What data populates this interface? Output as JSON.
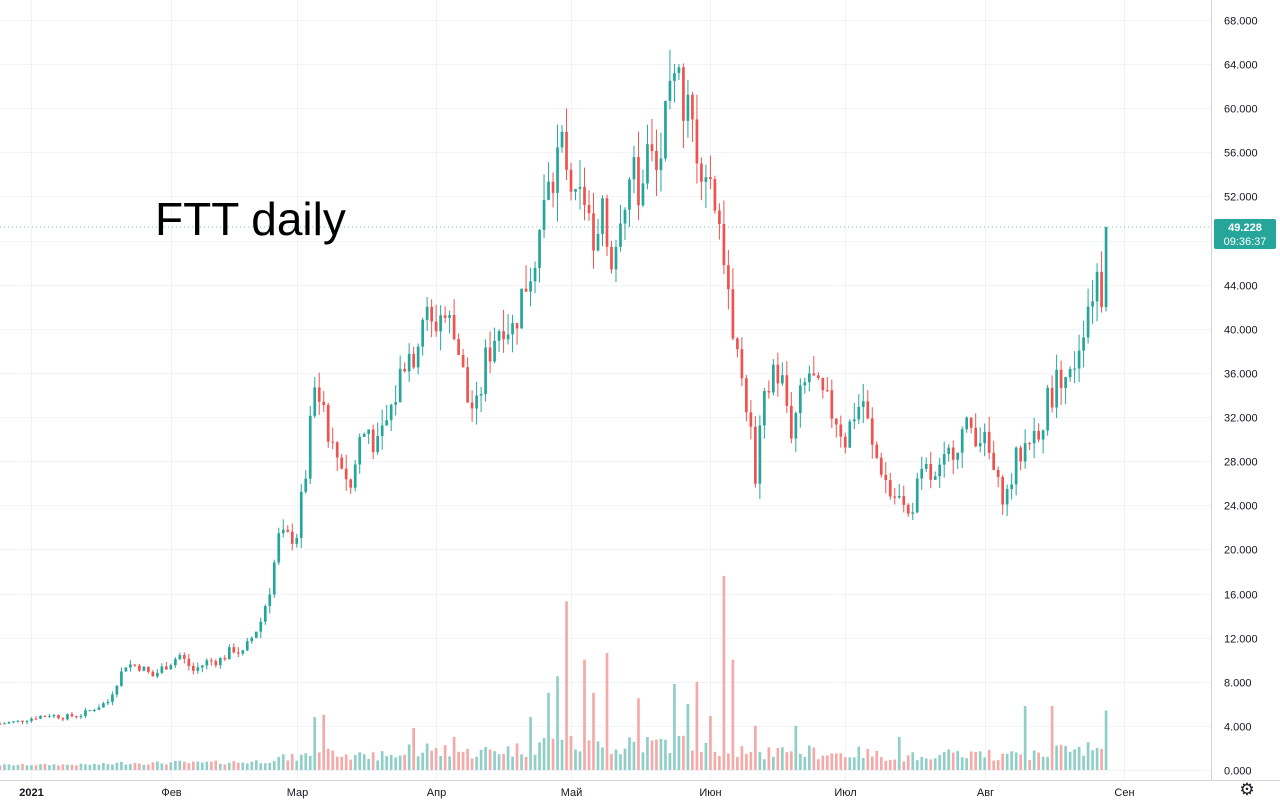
{
  "chart_data": {
    "type": "candlestick",
    "title": "FTT daily",
    "y_axis": {
      "ticks": [
        "68.000",
        "64.000",
        "60.000",
        "56.000",
        "52.000",
        "48.000",
        "44.000",
        "40.000",
        "36.000",
        "32.000",
        "28.000",
        "24.000",
        "20.000",
        "16.000",
        "12.000",
        "8.000",
        "4.000",
        "0.000"
      ],
      "price_range": [
        0,
        68
      ],
      "volume_range": [
        0,
        68
      ]
    },
    "x_axis": {
      "ticks": [
        "2021",
        "Фев",
        "Мар",
        "Апр",
        "Май",
        "Июн",
        "Июл",
        "Авг",
        "Сен"
      ],
      "tick_dates": [
        "2021-01-01",
        "2021-02-01",
        "2021-03-01",
        "2021-04-01",
        "2021-05-01",
        "2021-06-01",
        "2021-07-01",
        "2021-08-01",
        "2021-09-01"
      ],
      "range": [
        "2020-12-25",
        "2021-09-17"
      ]
    },
    "last_price": "49.228",
    "countdown": "09:36:37",
    "colors": {
      "up": "#26a69a",
      "down": "#ef5350",
      "vol_up": "#90cfc7",
      "vol_down": "#f4aaa8",
      "grid": "#f0f3fa"
    },
    "series": [
      {
        "name": "",
        "kind": "ohlc-path",
        "note_units": "price in USD; each waypoint is [date, close]",
        "path": [
          [
            "2020-12-25",
            4.2
          ],
          [
            "2020-12-29",
            4.4
          ],
          [
            "2021-01-02",
            4.8
          ],
          [
            "2021-01-05",
            5.0
          ],
          [
            "2021-01-08",
            4.8
          ],
          [
            "2021-01-12",
            5.0
          ],
          [
            "2021-01-15",
            5.6
          ],
          [
            "2021-01-18",
            6.2
          ],
          [
            "2021-01-20",
            8.0
          ],
          [
            "2021-01-22",
            9.6
          ],
          [
            "2021-01-25",
            9.4
          ],
          [
            "2021-01-28",
            8.5
          ],
          [
            "2021-01-30",
            9.2
          ],
          [
            "2021-02-03",
            10.4
          ],
          [
            "2021-02-06",
            9.0
          ],
          [
            "2021-02-09",
            9.8
          ],
          [
            "2021-02-12",
            10.0
          ],
          [
            "2021-02-15",
            11.0
          ],
          [
            "2021-02-17",
            10.5
          ],
          [
            "2021-02-19",
            12.0
          ],
          [
            "2021-02-21",
            13.5
          ],
          [
            "2021-02-23",
            16.5
          ],
          [
            "2021-02-25",
            21.0
          ],
          [
            "2021-02-27",
            21.0
          ],
          [
            "2021-03-01",
            21.5
          ],
          [
            "2021-03-03",
            27.0
          ],
          [
            "2021-03-05",
            34.5
          ],
          [
            "2021-03-07",
            33.0
          ],
          [
            "2021-03-09",
            29.0
          ],
          [
            "2021-03-11",
            28.0
          ],
          [
            "2021-03-13",
            25.5
          ],
          [
            "2021-03-15",
            30.0
          ],
          [
            "2021-03-17",
            31.0
          ],
          [
            "2021-03-19",
            29.0
          ],
          [
            "2021-03-21",
            31.5
          ],
          [
            "2021-03-23",
            34.0
          ],
          [
            "2021-03-25",
            37.5
          ],
          [
            "2021-03-27",
            38.0
          ],
          [
            "2021-03-29",
            41.5
          ],
          [
            "2021-03-31",
            40.0
          ],
          [
            "2021-04-02",
            41.5
          ],
          [
            "2021-04-04",
            40.5
          ],
          [
            "2021-04-06",
            38.0
          ],
          [
            "2021-04-08",
            33.5
          ],
          [
            "2021-04-10",
            32.5
          ],
          [
            "2021-04-12",
            37.0
          ],
          [
            "2021-04-14",
            39.5
          ],
          [
            "2021-04-16",
            41.0
          ],
          [
            "2021-04-18",
            40.0
          ],
          [
            "2021-04-20",
            43.0
          ],
          [
            "2021-04-22",
            45.5
          ],
          [
            "2021-04-24",
            49.0
          ],
          [
            "2021-04-26",
            52.5
          ],
          [
            "2021-04-28",
            56.0
          ],
          [
            "2021-04-30",
            55.5
          ],
          [
            "2021-05-02",
            50.5
          ],
          [
            "2021-05-04",
            52.0
          ],
          [
            "2021-05-06",
            46.0
          ],
          [
            "2021-05-08",
            49.5
          ],
          [
            "2021-05-10",
            46.5
          ],
          [
            "2021-05-12",
            51.5
          ],
          [
            "2021-05-14",
            53.5
          ],
          [
            "2021-05-16",
            53.0
          ],
          [
            "2021-05-18",
            56.0
          ],
          [
            "2021-05-20",
            54.0
          ],
          [
            "2021-05-22",
            58.0
          ],
          [
            "2021-05-24",
            61.5
          ],
          [
            "2021-05-26",
            61.0
          ],
          [
            "2021-05-28",
            58.0
          ],
          [
            "2021-05-30",
            56.0
          ],
          [
            "2021-06-01",
            53.5
          ],
          [
            "2021-06-03",
            50.0
          ],
          [
            "2021-06-05",
            44.0
          ],
          [
            "2021-06-07",
            37.0
          ],
          [
            "2021-06-09",
            33.5
          ],
          [
            "2021-06-11",
            27.0
          ],
          [
            "2021-06-13",
            33.0
          ],
          [
            "2021-06-15",
            36.5
          ],
          [
            "2021-06-17",
            35.0
          ],
          [
            "2021-06-19",
            31.0
          ],
          [
            "2021-06-21",
            33.5
          ],
          [
            "2021-06-23",
            36.0
          ],
          [
            "2021-06-25",
            34.0
          ],
          [
            "2021-06-27",
            33.0
          ],
          [
            "2021-06-29",
            32.0
          ],
          [
            "2021-07-01",
            30.0
          ],
          [
            "2021-07-03",
            32.5
          ],
          [
            "2021-07-05",
            33.5
          ],
          [
            "2021-07-07",
            29.0
          ],
          [
            "2021-07-09",
            27.5
          ],
          [
            "2021-07-11",
            25.0
          ],
          [
            "2021-07-13",
            24.5
          ],
          [
            "2021-07-15",
            23.0
          ],
          [
            "2021-07-17",
            25.5
          ],
          [
            "2021-07-19",
            27.0
          ],
          [
            "2021-07-21",
            26.0
          ],
          [
            "2021-07-23",
            27.5
          ],
          [
            "2021-07-25",
            29.5
          ],
          [
            "2021-07-27",
            30.5
          ],
          [
            "2021-07-29",
            31.0
          ],
          [
            "2021-07-31",
            30.5
          ],
          [
            "2021-08-02",
            28.5
          ],
          [
            "2021-08-04",
            25.5
          ],
          [
            "2021-08-06",
            25.0
          ],
          [
            "2021-08-08",
            28.0
          ],
          [
            "2021-08-10",
            29.5
          ],
          [
            "2021-08-12",
            30.5
          ],
          [
            "2021-08-14",
            32.0
          ],
          [
            "2021-08-16",
            34.5
          ],
          [
            "2021-08-18",
            36.0
          ],
          [
            "2021-08-20",
            35.5
          ],
          [
            "2021-08-22",
            39.0
          ],
          [
            "2021-08-24",
            42.5
          ],
          [
            "2021-08-26",
            45.0
          ],
          [
            "2021-08-27",
            43.5
          ],
          [
            "2021-08-28",
            49.228
          ]
        ]
      }
    ],
    "volume": {
      "name": "",
      "note_units": "volume shown on the same 0–68 scale as labelled",
      "spikes": [
        [
          "2021-03-05",
          4.8
        ],
        [
          "2021-03-07",
          5.0
        ],
        [
          "2021-03-27",
          3.8
        ],
        [
          "2021-04-05",
          3.0
        ],
        [
          "2021-04-22",
          4.8
        ],
        [
          "2021-04-26",
          7.0
        ],
        [
          "2021-04-28",
          8.5
        ],
        [
          "2021-04-30",
          15.3
        ],
        [
          "2021-05-04",
          10.0
        ],
        [
          "2021-05-06",
          7.0
        ],
        [
          "2021-05-09",
          10.6
        ],
        [
          "2021-05-16",
          6.5
        ],
        [
          "2021-05-24",
          7.8
        ],
        [
          "2021-05-27",
          6.0
        ],
        [
          "2021-05-29",
          8.0
        ],
        [
          "2021-06-01",
          4.9
        ],
        [
          "2021-06-04",
          17.6
        ],
        [
          "2021-06-06",
          10.0
        ],
        [
          "2021-06-11",
          4.0
        ],
        [
          "2021-06-20",
          4.0
        ],
        [
          "2021-07-13",
          3.0
        ],
        [
          "2021-08-10",
          5.8
        ],
        [
          "2021-08-16",
          5.8
        ],
        [
          "2021-08-28",
          5.4
        ]
      ]
    }
  }
}
